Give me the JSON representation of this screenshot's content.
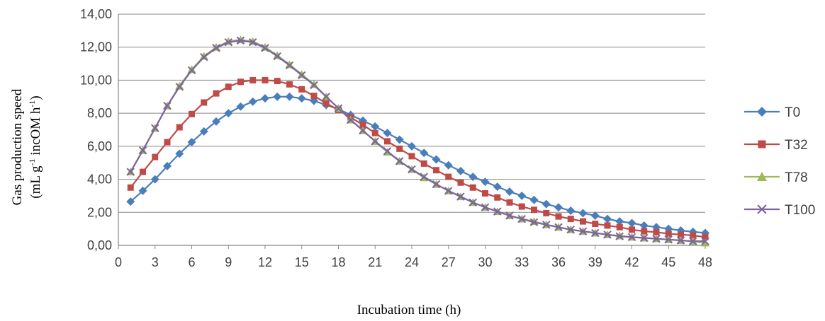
{
  "chart_data": {
    "type": "line",
    "xlabel": "Incubation time (h)",
    "ylabel_line1": "Gas production speed",
    "ylabel_line2_parts": [
      "(mL g",
      "-1",
      " incOM h",
      "-1",
      ")"
    ],
    "ylim": [
      0,
      14
    ],
    "xlim": [
      0,
      48
    ],
    "yticks": [
      "0,00",
      "2,00",
      "4,00",
      "6,00",
      "8,00",
      "10,00",
      "12,00",
      "14,00"
    ],
    "xticks": [
      "0",
      "3",
      "6",
      "9",
      "12",
      "15",
      "18",
      "21",
      "24",
      "27",
      "30",
      "33",
      "36",
      "39",
      "42",
      "45",
      "48"
    ],
    "grid": "horizontal",
    "legend_position": "right",
    "x": [
      1,
      2,
      3,
      4,
      5,
      6,
      7,
      8,
      9,
      10,
      11,
      12,
      13,
      14,
      15,
      16,
      17,
      18,
      19,
      20,
      21,
      22,
      23,
      24,
      25,
      26,
      27,
      28,
      29,
      30,
      31,
      32,
      33,
      34,
      35,
      36,
      37,
      38,
      39,
      40,
      41,
      42,
      43,
      44,
      45,
      46,
      47,
      48
    ],
    "series": [
      {
        "name": "T0",
        "color": "#4a7ebb",
        "marker": "diamond",
        "values": [
          2.65,
          3.3,
          4.0,
          4.8,
          5.55,
          6.25,
          6.9,
          7.5,
          8.0,
          8.4,
          8.7,
          8.9,
          9.0,
          9.0,
          8.9,
          8.75,
          8.5,
          8.25,
          7.9,
          7.55,
          7.2,
          6.8,
          6.4,
          6.0,
          5.6,
          5.2,
          4.85,
          4.5,
          4.15,
          3.85,
          3.55,
          3.25,
          3.0,
          2.75,
          2.5,
          2.3,
          2.1,
          1.95,
          1.8,
          1.6,
          1.45,
          1.35,
          1.2,
          1.1,
          1.0,
          0.9,
          0.82,
          0.75
        ]
      },
      {
        "name": "T32",
        "color": "#be4b48",
        "marker": "square",
        "values": [
          3.5,
          4.45,
          5.35,
          6.25,
          7.15,
          7.95,
          8.65,
          9.2,
          9.6,
          9.9,
          10.0,
          10.0,
          9.95,
          9.75,
          9.45,
          9.05,
          8.6,
          8.2,
          7.75,
          7.3,
          6.8,
          6.3,
          5.85,
          5.4,
          4.95,
          4.55,
          4.15,
          3.8,
          3.5,
          3.15,
          2.9,
          2.6,
          2.35,
          2.15,
          1.95,
          1.75,
          1.6,
          1.45,
          1.3,
          1.2,
          1.1,
          0.95,
          0.85,
          0.8,
          0.7,
          0.65,
          0.6,
          0.5
        ]
      },
      {
        "name": "T78",
        "color": "#9bbb59",
        "marker": "triangle",
        "values": [
          4.45,
          5.75,
          7.1,
          8.45,
          9.65,
          10.65,
          11.45,
          12.0,
          12.35,
          12.45,
          12.35,
          12.0,
          11.5,
          10.95,
          10.35,
          9.75,
          9.0,
          8.3,
          7.6,
          6.95,
          6.3,
          5.65,
          5.1,
          4.6,
          4.1,
          3.7,
          3.3,
          2.95,
          2.6,
          2.3,
          2.05,
          1.8,
          1.6,
          1.45,
          1.25,
          1.1,
          0.95,
          0.85,
          0.75,
          0.65,
          0.58,
          0.5,
          0.45,
          0.4,
          0.35,
          0.3,
          0.25,
          0.15
        ]
      },
      {
        "name": "T100",
        "color": "#7e649e",
        "marker": "x",
        "values": [
          4.45,
          5.75,
          7.1,
          8.45,
          9.6,
          10.6,
          11.4,
          11.95,
          12.3,
          12.4,
          12.3,
          11.95,
          11.45,
          10.9,
          10.3,
          9.7,
          9.0,
          8.3,
          7.6,
          6.95,
          6.3,
          5.7,
          5.1,
          4.6,
          4.15,
          3.7,
          3.3,
          2.95,
          2.6,
          2.3,
          2.05,
          1.8,
          1.6,
          1.4,
          1.25,
          1.1,
          0.95,
          0.85,
          0.75,
          0.65,
          0.55,
          0.5,
          0.45,
          0.4,
          0.35,
          0.3,
          0.25,
          0.25
        ]
      }
    ]
  }
}
